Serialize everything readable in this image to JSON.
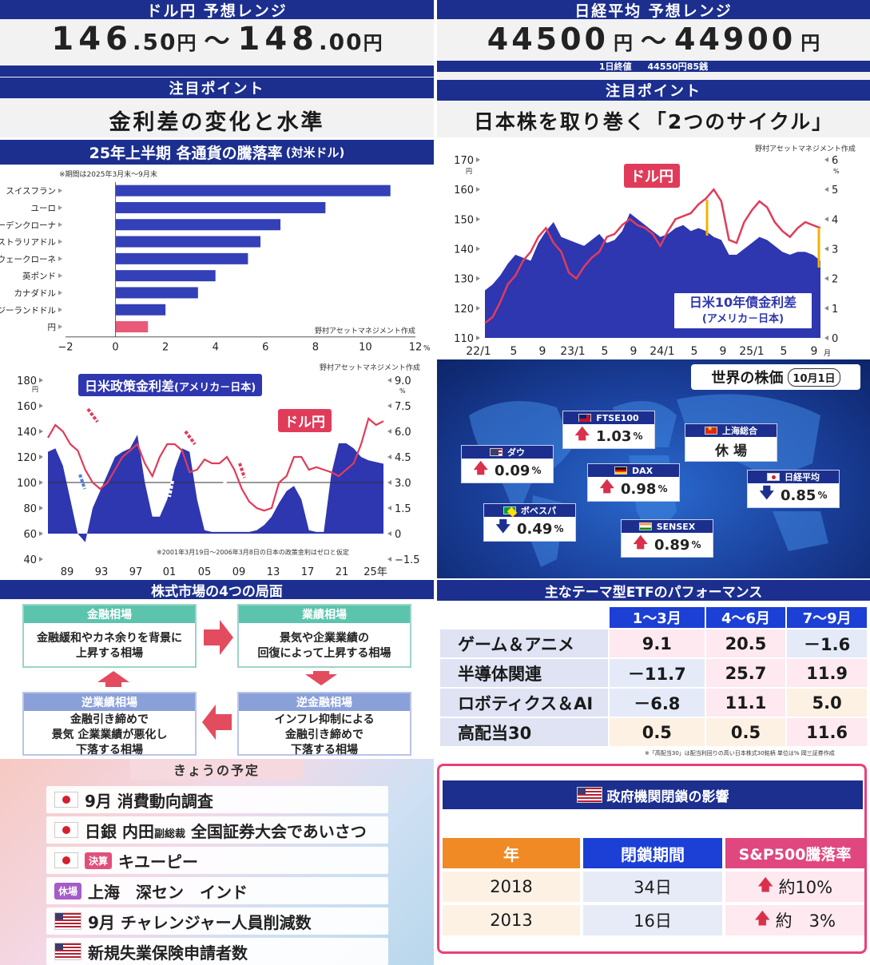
{
  "usdjpy_panel": {
    "title": "ドル円 予想レンジ",
    "low_int": "146",
    "low_dec": ".50",
    "unit1": "円",
    "sep": "～",
    "high_int": "148",
    "high_dec": ".00",
    "unit2": "円",
    "point_title": "注目ポイント",
    "point_text": "金利差の変化と水準"
  },
  "nikkei_panel": {
    "title": "日経平均 予想レンジ",
    "low": "44500",
    "unit1": "円",
    "sep": "～",
    "high": "44900",
    "unit2": "円",
    "close_label": "1日終値",
    "close_value": "44550円85銭",
    "point_title": "注目ポイント",
    "point_text": "日本株を取り巻く「2つのサイクル」"
  },
  "currency_chart": {
    "title": "25年上半期 各通貨の騰落率",
    "title_suffix": "(対米ドル)",
    "note": "※期間は2025年3月末～9月末",
    "source": "野村アセットマネジメント作成",
    "unit": "%"
  },
  "cycle_chart": {
    "source": "野村アセットマネジメント作成",
    "label_usdjpy": "ドル円",
    "label_spread": "日米10年債金利差",
    "label_spread_sub": "(アメリカ－日本)",
    "left_unit": "円",
    "right_unit": "%",
    "x_month_unit": "月"
  },
  "policy_chart": {
    "source": "野村アセットマネジメント作成",
    "label_spread": "日米政策金利差",
    "label_spread_sub": "(アメリカ－日本)",
    "label_usdjpy": "ドル円",
    "left_unit": "円",
    "right_unit": "%",
    "note": "※2001年3月19日～2006年3月8日の日本の政策金利はゼロと仮定",
    "x_year_unit": "年"
  },
  "world_stocks": {
    "title": "世界の株価",
    "date": "10月1日",
    "items": [
      {
        "name": "FTSE100",
        "value": "1.03",
        "unit": "%",
        "dir": "up",
        "flag": "uk"
      },
      {
        "name": "上海総合",
        "value": "休 場",
        "unit": "",
        "dir": "none",
        "flag": "cn"
      },
      {
        "name": "ダウ",
        "value": "0.09",
        "unit": "%",
        "dir": "up",
        "flag": "us"
      },
      {
        "name": "DAX",
        "value": "0.98",
        "unit": "%",
        "dir": "up",
        "flag": "de"
      },
      {
        "name": "日経平均",
        "value": "0.85",
        "unit": "%",
        "dir": "down",
        "flag": "jp"
      },
      {
        "name": "ボベスパ",
        "value": "0.49",
        "unit": "%",
        "dir": "down",
        "flag": "br"
      },
      {
        "name": "SENSEX",
        "value": "0.89",
        "unit": "%",
        "dir": "up",
        "flag": "in"
      }
    ]
  },
  "phases": {
    "title": "株式市場の4つの局面",
    "items": [
      {
        "head": "金融相場",
        "line1": "金融緩和やカネ余りを背景に",
        "line2": "上昇する相場",
        "line3": ""
      },
      {
        "head": "業績相場",
        "line1": "景気や企業業績の",
        "line2": "回復によって上昇する相場",
        "line3": ""
      },
      {
        "head": "逆金融相場",
        "line1": "インフレ抑制による",
        "line2": "金融引き締めで",
        "line3": "下落する相場"
      },
      {
        "head": "逆業績相場",
        "line1": "金融引き締めで",
        "line2": "景気 企業業績が悪化し",
        "line3": "下落する相場"
      }
    ]
  },
  "etf": {
    "title": "主なテーマ型ETFのパフォーマンス",
    "columns": [
      "1～3月",
      "4～6月",
      "7～9月"
    ],
    "rows": [
      {
        "name": "ゲーム＆アニメ",
        "vals": [
          "9.1",
          "20.5",
          "－1.6"
        ]
      },
      {
        "name": "半導体関連",
        "vals": [
          "－11.7",
          "25.7",
          "11.9"
        ]
      },
      {
        "name": "ロボティクス＆AI",
        "vals": [
          "－6.8",
          "11.1",
          "5.0"
        ]
      },
      {
        "name": "高配当30",
        "vals": [
          "0.5",
          "0.5",
          "11.6"
        ]
      }
    ],
    "note": "※「高配当30」は配当利回りの高い日本株式30銘柄 単位は% 岡三証券作成"
  },
  "schedule": {
    "title": "きょうの予定",
    "items": [
      {
        "flag": "jp",
        "tag": "",
        "text": "9月 消費動向調査",
        "small": ""
      },
      {
        "flag": "jp",
        "tag": "",
        "text": "日銀 内田",
        "small": "副総裁",
        "text2": " 全国証券大会であいさつ"
      },
      {
        "flag": "jp",
        "tag": "決算",
        "text": "キユーピー",
        "small": ""
      },
      {
        "flag": "",
        "tag": "休場",
        "text": "上海　深セン　インド",
        "small": ""
      },
      {
        "flag": "us",
        "tag": "",
        "text": "9月 チャレンジャー人員削減数",
        "small": ""
      },
      {
        "flag": "us",
        "tag": "",
        "text": "新規失業保険申請者数",
        "small": ""
      }
    ]
  },
  "shutdown": {
    "title": "政府機関閉鎖の影響",
    "headers": [
      "年",
      "閉鎖期間",
      "S&P500騰落率"
    ],
    "rows": [
      {
        "year": "2018",
        "period": "34日",
        "change": "約10%"
      },
      {
        "year": "2013",
        "period": "16日",
        "change": "約　3%"
      }
    ]
  },
  "chart_data": [
    {
      "type": "bar",
      "title": "25年上半期 各通貨の騰落率(対米ドル)",
      "categories": [
        "スイスフラン",
        "ユーロ",
        "スウェーデンクローナ",
        "オーストラリアドル",
        "ノルウェークローネ",
        "英ポンド",
        "カナダドル",
        "ニュージーランドドル",
        "円"
      ],
      "values": [
        11.0,
        8.4,
        6.6,
        5.8,
        5.3,
        4.0,
        3.3,
        2.0,
        1.3
      ],
      "xlim": [
        -2,
        12
      ],
      "xticks": [
        "−2",
        "0",
        "2",
        "4",
        "6",
        "8",
        "10",
        "12"
      ],
      "colors": {
        "bar": "#3340b8",
        "highlight": "#e85a78"
      }
    },
    {
      "type": "line",
      "title": "",
      "x_ticks": [
        "22/1",
        "5",
        "9",
        "23/1",
        "5",
        "9",
        "24/1",
        "5",
        "9",
        "25/1",
        "5",
        "9"
      ],
      "left_ticks": [
        "110",
        "120",
        "130",
        "140",
        "150",
        "160",
        "170"
      ],
      "right_ticks": [
        "0",
        "1",
        "2",
        "3",
        "4",
        "5",
        "6"
      ],
      "series": [
        {
          "name": "ドル円",
          "axis": "left",
          "values": [
            115,
            117,
            122,
            128,
            131,
            136,
            139,
            144,
            147,
            142,
            139,
            132,
            130,
            134,
            137,
            139,
            144,
            145,
            148,
            150,
            148,
            147,
            145,
            141,
            146,
            150,
            151,
            152,
            155,
            157,
            160,
            156,
            143,
            142,
            149,
            153,
            156,
            154,
            149,
            146,
            144,
            147,
            149,
            148,
            147
          ]
        },
        {
          "name": "日米10年債金利差",
          "axis": "right",
          "values": [
            1.6,
            1.8,
            2.1,
            2.5,
            2.8,
            2.7,
            2.6,
            3.2,
            3.6,
            3.9,
            3.4,
            3.3,
            3.2,
            3.1,
            3.3,
            3.5,
            3.2,
            3.3,
            3.6,
            4.2,
            4.0,
            3.8,
            3.6,
            3.4,
            3.5,
            3.7,
            3.8,
            3.6,
            3.7,
            3.6,
            3.4,
            3.3,
            2.8,
            2.8,
            3.0,
            3.2,
            3.4,
            3.3,
            3.1,
            2.9,
            2.8,
            2.9,
            2.9,
            2.8,
            2.6
          ]
        }
      ],
      "colors": {
        "usdjpy": "#e03c5a",
        "spread": "#2e36b0"
      }
    },
    {
      "type": "line",
      "title": "",
      "x_ticks": [
        "89",
        "93",
        "97",
        "01",
        "05",
        "09",
        "13",
        "17",
        "21",
        "25年"
      ],
      "left_ticks": [
        "40",
        "60",
        "80",
        "100",
        "120",
        "140",
        "160",
        "180"
      ],
      "right_ticks": [
        "−1.5",
        "0",
        "1.5",
        "3.0",
        "4.5",
        "6.0",
        "7.5",
        "9.0"
      ],
      "series": [
        {
          "name": "ドル円",
          "axis": "left",
          "values": [
            135,
            145,
            140,
            130,
            125,
            110,
            100,
            95,
            100,
            110,
            120,
            125,
            130,
            115,
            105,
            120,
            130,
            130,
            125,
            108,
            110,
            118,
            115,
            115,
            120,
            110,
            95,
            85,
            80,
            78,
            80,
            100,
            105,
            120,
            120,
            110,
            112,
            110,
            108,
            105,
            110,
            115,
            130,
            150,
            145,
            148
          ]
        },
        {
          "name": "日米政策金利差",
          "axis": "right",
          "values": [
            4.8,
            5.0,
            4.0,
            2.0,
            0.0,
            -0.5,
            1.5,
            2.5,
            3.5,
            4.5,
            4.8,
            5.0,
            5.8,
            3.0,
            1.0,
            1.0,
            2.0,
            3.8,
            5.0,
            4.8,
            2.0,
            0.2,
            0.1,
            0.1,
            0.1,
            0.1,
            0.1,
            0.1,
            0.2,
            0.5,
            1.0,
            1.8,
            2.5,
            2.8,
            2.0,
            0.2,
            0.1,
            0.1,
            3.5,
            5.3,
            5.3,
            5.0,
            4.5,
            4.3,
            4.2,
            4.1
          ]
        }
      ],
      "colors": {
        "usdjpy": "#e03c5a",
        "spread": "#2e36b0"
      }
    }
  ]
}
